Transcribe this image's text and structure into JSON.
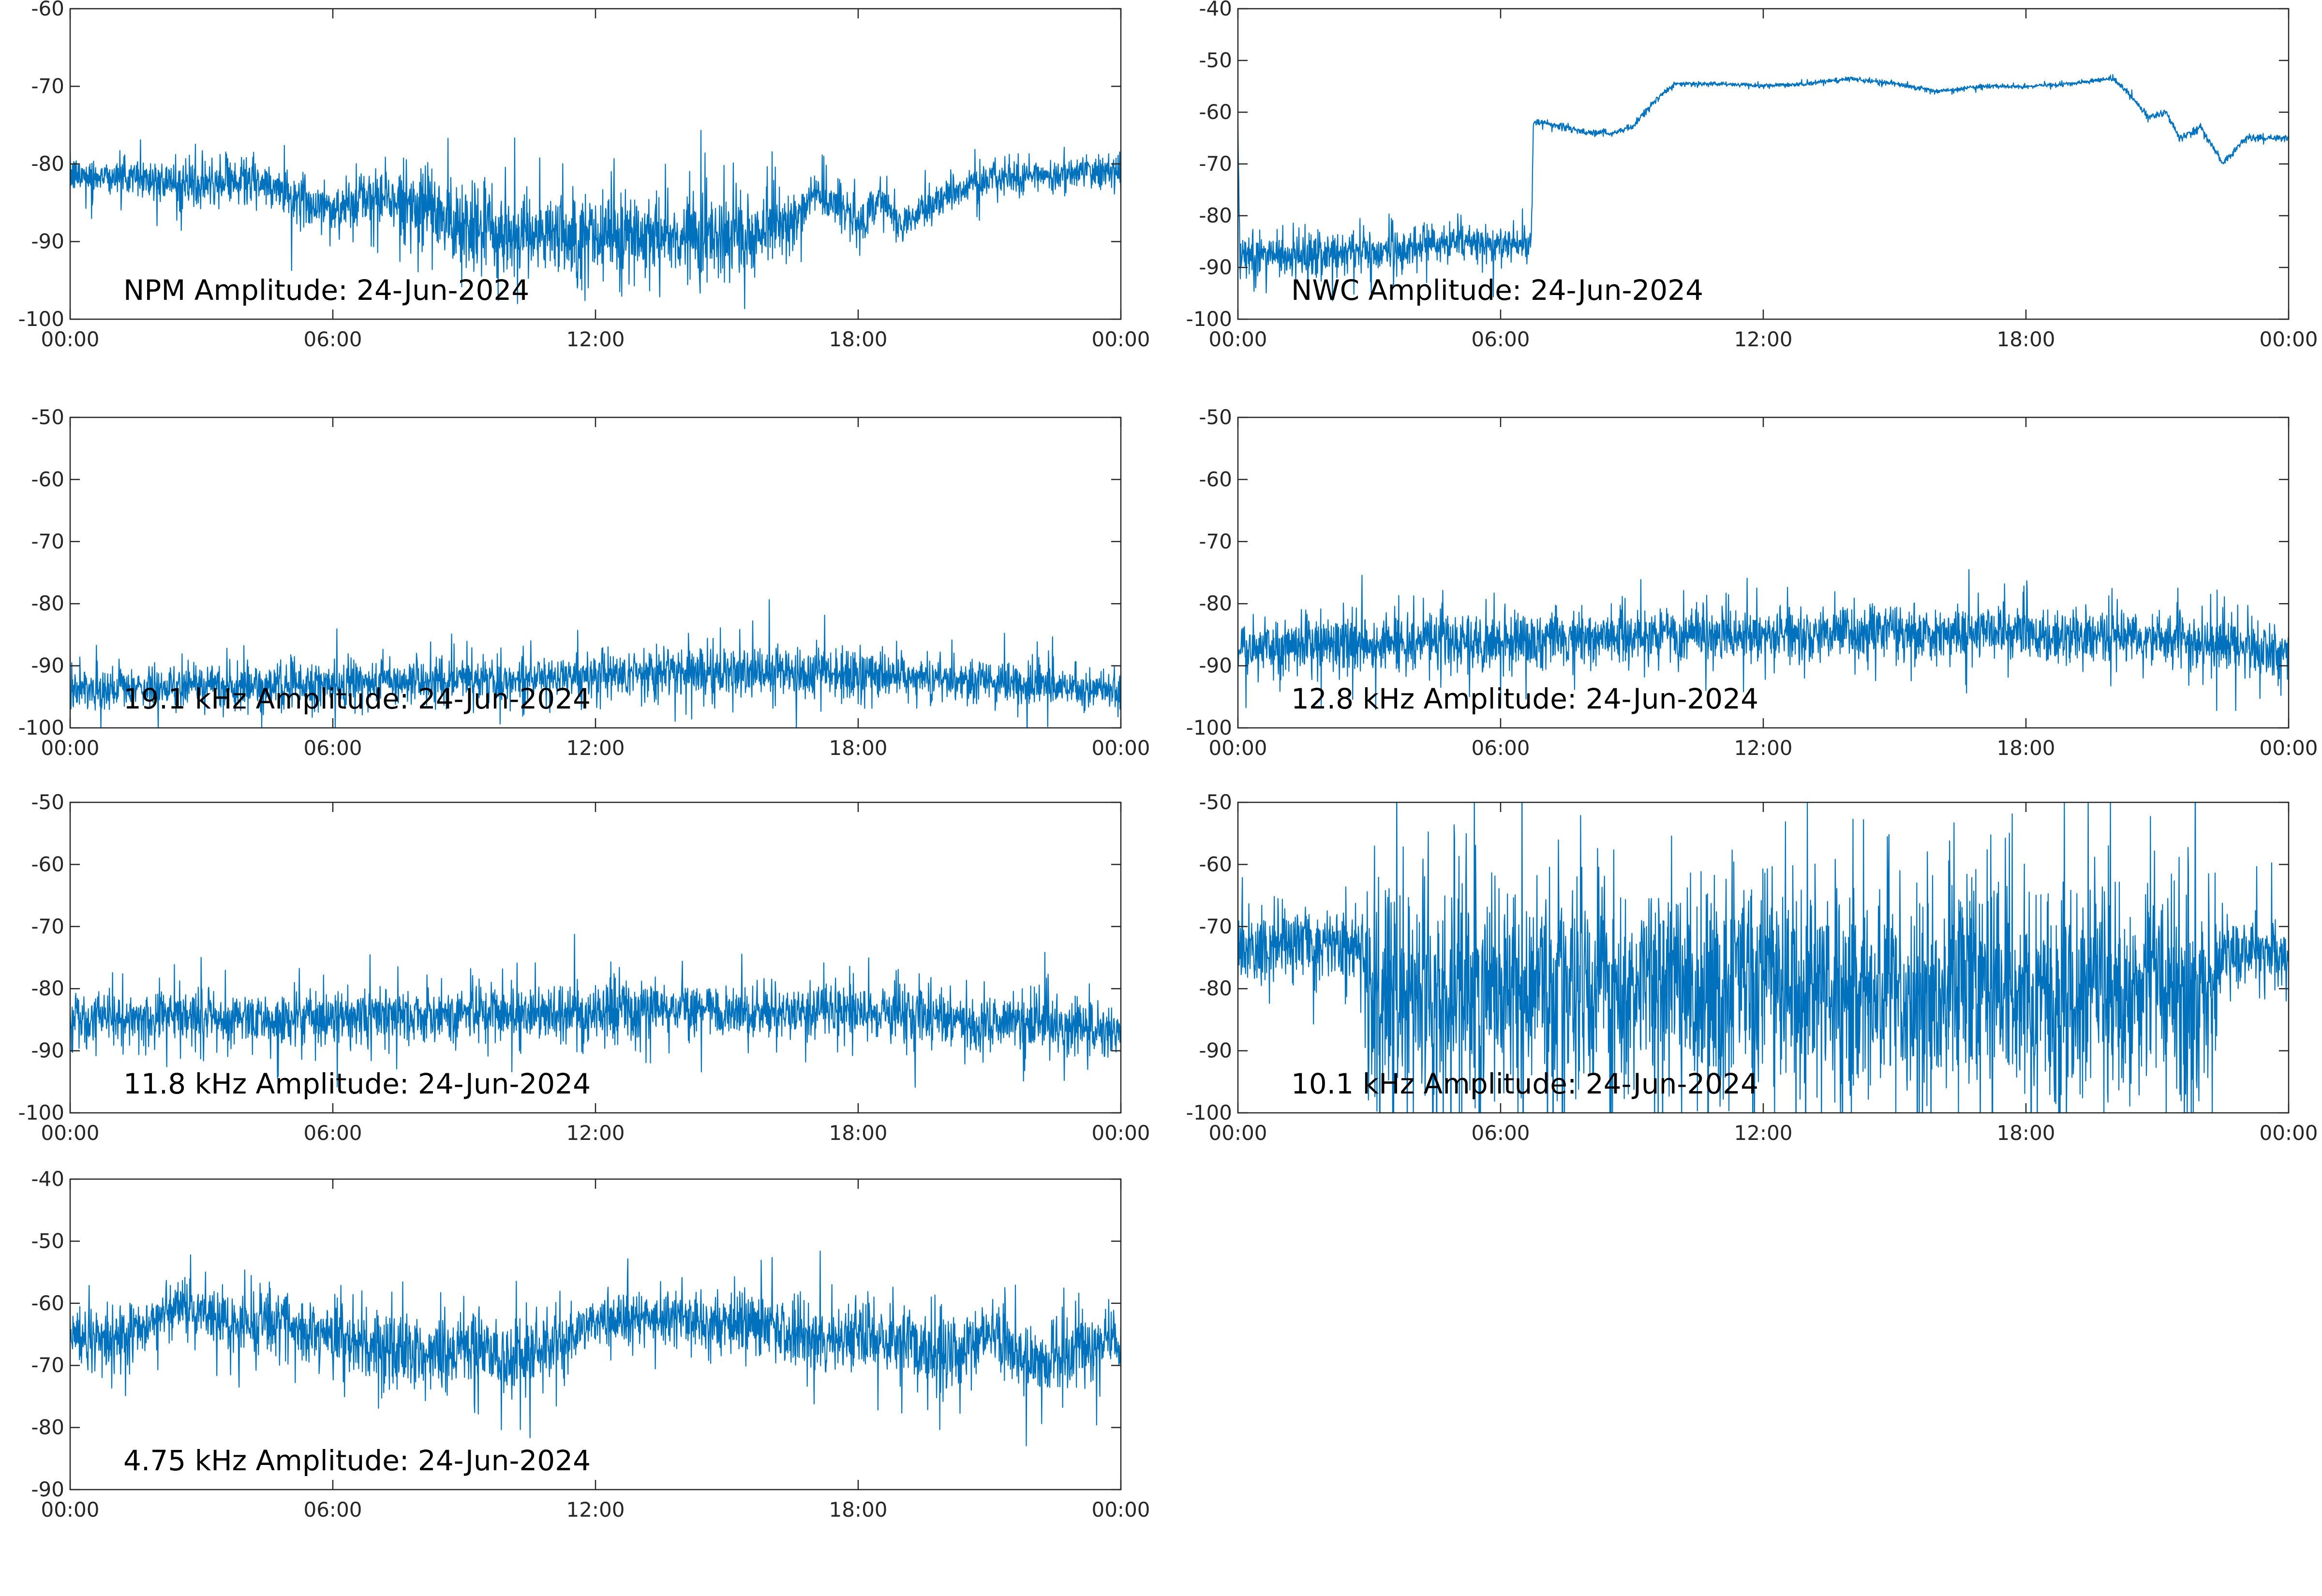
{
  "chart_data": [
    {
      "type": "line",
      "title": "NPM Amplitude: 24-Jun-2024",
      "x_tick_labels": [
        "00:00",
        "06:00",
        "12:00",
        "18:00",
        "00:00"
      ],
      "xlim_hours": [
        0,
        24
      ],
      "ylim": [
        -100,
        -60
      ],
      "y_ticks": [
        -100,
        -90,
        -80,
        -70,
        -60
      ],
      "color": "#0072BD",
      "series": [
        {
          "x_hours": [
            0,
            1,
            2,
            3,
            4,
            5,
            6,
            7,
            8,
            9,
            10,
            11,
            12,
            13,
            14,
            15,
            16,
            16.5,
            17,
            17.5,
            18,
            18.5,
            19,
            19.5,
            20,
            21,
            22,
            23,
            24
          ],
          "y": [
            -81.5,
            -81.5,
            -82,
            -83,
            -82,
            -84,
            -86,
            -84,
            -86,
            -88,
            -89,
            -89,
            -89,
            -89,
            -89,
            -89,
            -89,
            -87,
            -84,
            -85,
            -88,
            -84,
            -88,
            -86,
            -84,
            -82,
            -81.5,
            -81,
            -81
          ],
          "spread": [
            2,
            2,
            2.5,
            2.5,
            3,
            3,
            3,
            3,
            4,
            5,
            5,
            5,
            5,
            5,
            5,
            5,
            4,
            3,
            2.5,
            2.5,
            2.5,
            2.5,
            2.5,
            2,
            2,
            2,
            1.8,
            1.8,
            1.8
          ]
        }
      ]
    },
    {
      "type": "line",
      "title": "NWC Amplitude: 24-Jun-2024",
      "x_tick_labels": [
        "00:00",
        "06:00",
        "12:00",
        "18:00",
        "00:00"
      ],
      "xlim_hours": [
        0,
        24
      ],
      "ylim": [
        -100,
        -40
      ],
      "y_ticks": [
        -100,
        -90,
        -80,
        -70,
        -60,
        -50,
        -40
      ],
      "color": "#0072BD",
      "series": [
        {
          "x_hours": [
            0,
            0.05,
            0.1,
            1,
            2,
            3,
            4,
            5,
            6,
            6.7,
            6.75,
            7,
            7.5,
            8,
            8.5,
            9,
            9.5,
            10,
            11,
            12,
            13,
            14,
            15,
            16,
            17,
            18,
            19,
            20,
            20.3,
            20.8,
            21.2,
            21.5,
            22,
            22.5,
            23,
            24
          ],
          "y": [
            -63,
            -88,
            -88,
            -88,
            -87,
            -87,
            -86,
            -85,
            -86,
            -85,
            -62,
            -62,
            -63,
            -64,
            -64,
            -63,
            -58,
            -54.5,
            -54.5,
            -55,
            -54.5,
            -53.5,
            -54.5,
            -56,
            -55,
            -55,
            -54.5,
            -53.5,
            -56,
            -61,
            -60,
            -65,
            -63,
            -70,
            -65,
            -65
          ],
          "spread": [
            1,
            4,
            4,
            4,
            4,
            3.5,
            3.5,
            3.5,
            3,
            3,
            0.6,
            0.6,
            0.6,
            0.6,
            0.6,
            0.6,
            0.6,
            0.4,
            0.4,
            0.4,
            0.4,
            0.4,
            0.4,
            0.4,
            0.4,
            0.4,
            0.4,
            0.4,
            0.5,
            0.6,
            0.6,
            0.6,
            0.6,
            0.6,
            0.6,
            0.5
          ]
        }
      ]
    },
    {
      "type": "line",
      "title": "19.1 kHz Amplitude: 24-Jun-2024",
      "x_tick_labels": [
        "00:00",
        "06:00",
        "12:00",
        "18:00",
        "00:00"
      ],
      "xlim_hours": [
        0,
        24
      ],
      "ylim": [
        -100,
        -50
      ],
      "y_ticks": [
        -100,
        -90,
        -80,
        -70,
        -60,
        -50
      ],
      "color": "#0072BD",
      "series": [
        {
          "x_hours": [
            0,
            2,
            4,
            6,
            8,
            10,
            12,
            14,
            16,
            18,
            20,
            22,
            24
          ],
          "y": [
            -94,
            -93.5,
            -93,
            -93,
            -92.5,
            -92,
            -91.5,
            -91,
            -91,
            -91.5,
            -92,
            -93,
            -94
          ],
          "spread": [
            3,
            3,
            3,
            3,
            3,
            3,
            3.5,
            3.5,
            3.5,
            3.5,
            3,
            3,
            3
          ]
        }
      ]
    },
    {
      "type": "line",
      "title": "12.8 kHz Amplitude: 24-Jun-2024",
      "x_tick_labels": [
        "00:00",
        "06:00",
        "12:00",
        "18:00",
        "00:00"
      ],
      "xlim_hours": [
        0,
        24
      ],
      "ylim": [
        -100,
        -50
      ],
      "y_ticks": [
        -100,
        -90,
        -80,
        -70,
        -60,
        -50
      ],
      "color": "#0072BD",
      "series": [
        {
          "x_hours": [
            0,
            2,
            4,
            6,
            8,
            10,
            12,
            14,
            16,
            18,
            20,
            22,
            24
          ],
          "y": [
            -87,
            -86.5,
            -86,
            -86,
            -85.5,
            -85,
            -85,
            -84.5,
            -84.5,
            -85,
            -85.5,
            -86,
            -88
          ],
          "spread": [
            4,
            4,
            4,
            4,
            4,
            4,
            4,
            4,
            4,
            4,
            4,
            4,
            4
          ]
        }
      ]
    },
    {
      "type": "line",
      "title": "11.8 kHz Amplitude: 24-Jun-2024",
      "x_tick_labels": [
        "00:00",
        "06:00",
        "12:00",
        "18:00",
        "00:00"
      ],
      "xlim_hours": [
        0,
        24
      ],
      "ylim": [
        -100,
        -50
      ],
      "y_ticks": [
        -100,
        -90,
        -80,
        -70,
        -60,
        -50
      ],
      "color": "#0072BD",
      "series": [
        {
          "x_hours": [
            0,
            2,
            4,
            6,
            8,
            10,
            12,
            14,
            16,
            18,
            20,
            22,
            24
          ],
          "y": [
            -85,
            -84.5,
            -85,
            -85,
            -84,
            -84,
            -84,
            -83.5,
            -84,
            -84,
            -85,
            -85.5,
            -87
          ],
          "spread": [
            4,
            4,
            4,
            4,
            4,
            4,
            4,
            4,
            4,
            4,
            4,
            4,
            4
          ]
        }
      ]
    },
    {
      "type": "line",
      "title": "10.1 kHz Amplitude: 24-Jun-2024",
      "x_tick_labels": [
        "00:00",
        "06:00",
        "12:00",
        "18:00",
        "00:00"
      ],
      "xlim_hours": [
        0,
        24
      ],
      "ylim": [
        -100,
        -50
      ],
      "y_ticks": [
        -100,
        -90,
        -80,
        -70,
        -60,
        -50
      ],
      "color": "#0072BD",
      "series": [
        {
          "x_hours": [
            0,
            1,
            2,
            2.8,
            3,
            6,
            9,
            12,
            15,
            18,
            21,
            22.3,
            22.5,
            23,
            24
          ],
          "y": [
            -73,
            -73,
            -73,
            -73,
            -80,
            -80,
            -80,
            -80,
            -80,
            -80,
            -80,
            -80,
            -74,
            -74,
            -75
          ],
          "spread": [
            5,
            5,
            5,
            5,
            16,
            16,
            16,
            16,
            16,
            16,
            16,
            16,
            5,
            5,
            5
          ]
        }
      ]
    },
    {
      "type": "line",
      "title": "4.75 kHz Amplitude: 24-Jun-2024",
      "x_tick_labels": [
        "00:00",
        "06:00",
        "12:00",
        "18:00",
        "00:00"
      ],
      "xlim_hours": [
        0,
        24
      ],
      "ylim": [
        -90,
        -40
      ],
      "y_ticks": [
        -90,
        -80,
        -70,
        -60,
        -50,
        -40
      ],
      "color": "#0072BD",
      "series": [
        {
          "x_hours": [
            0,
            1,
            2,
            3,
            4,
            5,
            6,
            7,
            8,
            9,
            10,
            11,
            12,
            13,
            14,
            15,
            16,
            17,
            18,
            19,
            20,
            21,
            22,
            23,
            24
          ],
          "y": [
            -65,
            -66,
            -62,
            -61,
            -64,
            -63,
            -66,
            -67,
            -68,
            -67,
            -69,
            -67,
            -63,
            -63,
            -62,
            -63,
            -64,
            -66,
            -65,
            -66,
            -68,
            -64,
            -70,
            -68,
            -66
          ],
          "spread": [
            4,
            5,
            4,
            4,
            5,
            4,
            5,
            5,
            6,
            5,
            6,
            5,
            4,
            4,
            4,
            4,
            5,
            5,
            5,
            5,
            6,
            5,
            5,
            5,
            5
          ]
        }
      ]
    }
  ]
}
